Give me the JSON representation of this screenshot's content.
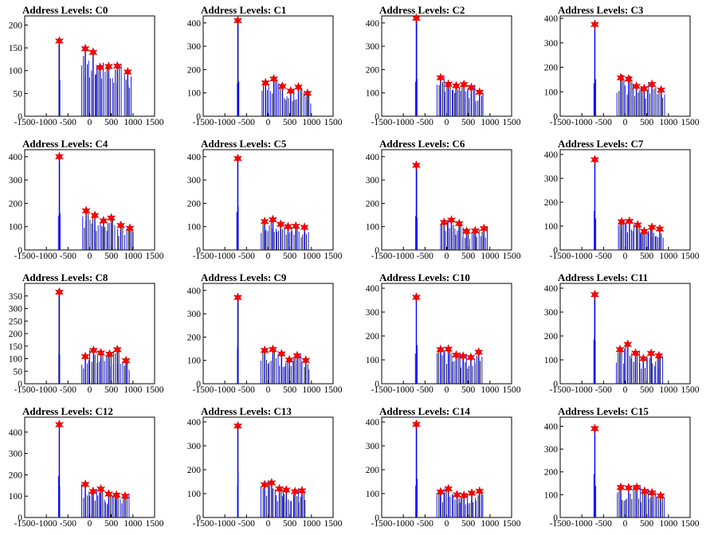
{
  "chart_data": [
    {
      "title": "Address Levels: C0",
      "type": "bar",
      "xlim": [
        -1500,
        1500
      ],
      "ylim": [
        0,
        220
      ],
      "xticks": [
        "-1500",
        "-1000",
        "-500",
        "0",
        "500",
        "1000",
        "1500"
      ],
      "yticks": [
        "0",
        "50",
        "100",
        "150",
        "200"
      ],
      "peaks": [
        {
          "x": -700,
          "y": 165
        },
        {
          "x": -100,
          "y": 148
        },
        {
          "x": 80,
          "y": 140
        },
        {
          "x": 240,
          "y": 107
        },
        {
          "x": 440,
          "y": 109
        },
        {
          "x": 640,
          "y": 110
        },
        {
          "x": 880,
          "y": 97
        }
      ]
    },
    {
      "title": "Address Levels: C1",
      "type": "bar",
      "xlim": [
        -1500,
        1500
      ],
      "ylim": [
        0,
        430
      ],
      "xticks": [
        "-1500",
        "-1000",
        "-500",
        "0",
        "500",
        "1000",
        "1500"
      ],
      "yticks": [
        "0",
        "100",
        "200",
        "300",
        "400"
      ],
      "peaks": [
        {
          "x": -700,
          "y": 410
        },
        {
          "x": -60,
          "y": 143
        },
        {
          "x": 130,
          "y": 160
        },
        {
          "x": 330,
          "y": 128
        },
        {
          "x": 520,
          "y": 108
        },
        {
          "x": 700,
          "y": 125
        },
        {
          "x": 910,
          "y": 98
        }
      ]
    },
    {
      "title": "Address Levels: C2",
      "type": "bar",
      "xlim": [
        -1500,
        1500
      ],
      "ylim": [
        0,
        430
      ],
      "xticks": [
        "-1500",
        "-1000",
        "-500",
        "0",
        "500",
        "1000",
        "1500"
      ],
      "yticks": [
        "0",
        "100",
        "200",
        "300",
        "400"
      ],
      "peaks": [
        {
          "x": -700,
          "y": 420
        },
        {
          "x": -140,
          "y": 165
        },
        {
          "x": 40,
          "y": 137
        },
        {
          "x": 220,
          "y": 130
        },
        {
          "x": 400,
          "y": 136
        },
        {
          "x": 570,
          "y": 123
        },
        {
          "x": 760,
          "y": 103
        }
      ]
    },
    {
      "title": "Address Levels: C3",
      "type": "bar",
      "xlim": [
        -1500,
        1500
      ],
      "ylim": [
        0,
        410
      ],
      "xticks": [
        "-1500",
        "-1000",
        "-500",
        "0",
        "500",
        "1000",
        "1500"
      ],
      "yticks": [
        "0",
        "100",
        "200",
        "300",
        "400"
      ],
      "peaks": [
        {
          "x": -700,
          "y": 375
        },
        {
          "x": -100,
          "y": 157
        },
        {
          "x": 80,
          "y": 152
        },
        {
          "x": 260,
          "y": 122
        },
        {
          "x": 440,
          "y": 113
        },
        {
          "x": 620,
          "y": 130
        },
        {
          "x": 830,
          "y": 107
        }
      ]
    },
    {
      "title": "Address Levels: C4",
      "type": "bar",
      "xlim": [
        -1500,
        1500
      ],
      "ylim": [
        0,
        430
      ],
      "xticks": [
        "-1500",
        "-1000",
        "-500",
        "0",
        "500",
        "1000",
        "1500"
      ],
      "yticks": [
        "0",
        "100",
        "200",
        "300",
        "400"
      ],
      "peaks": [
        {
          "x": -700,
          "y": 400
        },
        {
          "x": -80,
          "y": 168
        },
        {
          "x": 120,
          "y": 148
        },
        {
          "x": 320,
          "y": 125
        },
        {
          "x": 500,
          "y": 137
        },
        {
          "x": 720,
          "y": 105
        },
        {
          "x": 930,
          "y": 93
        }
      ]
    },
    {
      "title": "Address Levels: C5",
      "type": "bar",
      "xlim": [
        -1500,
        1500
      ],
      "ylim": [
        0,
        430
      ],
      "xticks": [
        "-1500",
        "-1000",
        "-500",
        "0",
        "500",
        "1000",
        "1500"
      ],
      "yticks": [
        "0",
        "100",
        "200",
        "300",
        "400"
      ],
      "peaks": [
        {
          "x": -700,
          "y": 392
        },
        {
          "x": -80,
          "y": 122
        },
        {
          "x": 110,
          "y": 130
        },
        {
          "x": 290,
          "y": 110
        },
        {
          "x": 460,
          "y": 100
        },
        {
          "x": 640,
          "y": 102
        },
        {
          "x": 840,
          "y": 97
        }
      ]
    },
    {
      "title": "Address Levels: C6",
      "type": "bar",
      "xlim": [
        -1500,
        1500
      ],
      "ylim": [
        0,
        430
      ],
      "xticks": [
        "-1500",
        "-1000",
        "-500",
        "0",
        "500",
        "1000",
        "1500"
      ],
      "yticks": [
        "0",
        "100",
        "200",
        "300",
        "400"
      ],
      "peaks": [
        {
          "x": -700,
          "y": 363
        },
        {
          "x": -60,
          "y": 118
        },
        {
          "x": 110,
          "y": 128
        },
        {
          "x": 290,
          "y": 113
        },
        {
          "x": 460,
          "y": 80
        },
        {
          "x": 660,
          "y": 82
        },
        {
          "x": 860,
          "y": 92
        }
      ]
    },
    {
      "title": "Address Levels: C7",
      "type": "bar",
      "xlim": [
        -1500,
        1500
      ],
      "ylim": [
        0,
        420
      ],
      "xticks": [
        "-1500",
        "-1000",
        "-500",
        "0",
        "500",
        "1000",
        "1500"
      ],
      "yticks": [
        "0",
        "100",
        "200",
        "300",
        "400"
      ],
      "peaks": [
        {
          "x": -700,
          "y": 378
        },
        {
          "x": -80,
          "y": 118
        },
        {
          "x": 100,
          "y": 120
        },
        {
          "x": 290,
          "y": 105
        },
        {
          "x": 440,
          "y": 78
        },
        {
          "x": 620,
          "y": 95
        },
        {
          "x": 800,
          "y": 88
        }
      ]
    },
    {
      "title": "Address Levels: C8",
      "type": "bar",
      "xlim": [
        -1500,
        1500
      ],
      "ylim": [
        0,
        400
      ],
      "xticks": [
        "-1500",
        "-1000",
        "-500",
        "0",
        "500",
        "1000",
        "1500"
      ],
      "yticks": [
        "0",
        "50",
        "100",
        "150",
        "200",
        "250",
        "300",
        "350"
      ],
      "peaks": [
        {
          "x": -700,
          "y": 365
        },
        {
          "x": -100,
          "y": 108
        },
        {
          "x": 90,
          "y": 133
        },
        {
          "x": 260,
          "y": 123
        },
        {
          "x": 460,
          "y": 118
        },
        {
          "x": 640,
          "y": 136
        },
        {
          "x": 840,
          "y": 92
        }
      ]
    },
    {
      "title": "Address Levels: C9",
      "type": "bar",
      "xlim": [
        -1500,
        1500
      ],
      "ylim": [
        0,
        430
      ],
      "xticks": [
        "-1500",
        "-1000",
        "-500",
        "0",
        "500",
        "1000",
        "1500"
      ],
      "yticks": [
        "0",
        "100",
        "200",
        "300",
        "400"
      ],
      "peaks": [
        {
          "x": -700,
          "y": 370
        },
        {
          "x": -80,
          "y": 143
        },
        {
          "x": 110,
          "y": 147
        },
        {
          "x": 310,
          "y": 128
        },
        {
          "x": 490,
          "y": 102
        },
        {
          "x": 670,
          "y": 120
        },
        {
          "x": 870,
          "y": 100
        }
      ]
    },
    {
      "title": "Address Levels: C10",
      "type": "bar",
      "xlim": [
        -1500,
        1500
      ],
      "ylim": [
        0,
        420
      ],
      "xticks": [
        "-1500",
        "-1000",
        "-500",
        "0",
        "500",
        "1000",
        "1500"
      ],
      "yticks": [
        "0",
        "100",
        "200",
        "300",
        "400"
      ],
      "peaks": [
        {
          "x": -700,
          "y": 362
        },
        {
          "x": -140,
          "y": 143
        },
        {
          "x": 40,
          "y": 145
        },
        {
          "x": 220,
          "y": 120
        },
        {
          "x": 380,
          "y": 115
        },
        {
          "x": 560,
          "y": 110
        },
        {
          "x": 740,
          "y": 132
        }
      ]
    },
    {
      "title": "Address Levels: C11",
      "type": "bar",
      "xlim": [
        -1500,
        1500
      ],
      "ylim": [
        0,
        420
      ],
      "xticks": [
        "-1500",
        "-1000",
        "-500",
        "0",
        "500",
        "1000",
        "1500"
      ],
      "yticks": [
        "0",
        "100",
        "200",
        "300",
        "400"
      ],
      "peaks": [
        {
          "x": -700,
          "y": 373
        },
        {
          "x": -120,
          "y": 143
        },
        {
          "x": 60,
          "y": 165
        },
        {
          "x": 240,
          "y": 128
        },
        {
          "x": 420,
          "y": 105
        },
        {
          "x": 600,
          "y": 127
        },
        {
          "x": 780,
          "y": 117
        }
      ]
    },
    {
      "title": "Address Levels: C12",
      "type": "bar",
      "xlim": [
        -1500,
        1500
      ],
      "ylim": [
        0,
        470
      ],
      "xticks": [
        "-1500",
        "-1000",
        "-500",
        "0",
        "500",
        "1000",
        "1500"
      ],
      "yticks": [
        "0",
        "100",
        "200",
        "300",
        "400"
      ],
      "peaks": [
        {
          "x": -700,
          "y": 435
        },
        {
          "x": -100,
          "y": 155
        },
        {
          "x": 80,
          "y": 122
        },
        {
          "x": 260,
          "y": 133
        },
        {
          "x": 440,
          "y": 110
        },
        {
          "x": 620,
          "y": 105
        },
        {
          "x": 820,
          "y": 100
        }
      ]
    },
    {
      "title": "Address Levels: C13",
      "type": "bar",
      "xlim": [
        -1500,
        1500
      ],
      "ylim": [
        0,
        420
      ],
      "xticks": [
        "-1500",
        "-1000",
        "-500",
        "0",
        "500",
        "1000",
        "1500"
      ],
      "yticks": [
        "0",
        "100",
        "200",
        "300",
        "400"
      ],
      "peaks": [
        {
          "x": -700,
          "y": 383
        },
        {
          "x": -80,
          "y": 137
        },
        {
          "x": 80,
          "y": 145
        },
        {
          "x": 260,
          "y": 120
        },
        {
          "x": 420,
          "y": 115
        },
        {
          "x": 620,
          "y": 108
        },
        {
          "x": 780,
          "y": 112
        }
      ]
    },
    {
      "title": "Address Levels: C14",
      "type": "bar",
      "xlim": [
        -1500,
        1500
      ],
      "ylim": [
        0,
        420
      ],
      "xticks": [
        "-1500",
        "-1000",
        "-500",
        "0",
        "500",
        "1000",
        "1500"
      ],
      "yticks": [
        "0",
        "100",
        "200",
        "300",
        "400"
      ],
      "peaks": [
        {
          "x": -700,
          "y": 390
        },
        {
          "x": -140,
          "y": 107
        },
        {
          "x": 40,
          "y": 120
        },
        {
          "x": 240,
          "y": 95
        },
        {
          "x": 400,
          "y": 92
        },
        {
          "x": 580,
          "y": 102
        },
        {
          "x": 760,
          "y": 110
        }
      ]
    },
    {
      "title": "Address Levels: C15",
      "type": "bar",
      "xlim": [
        -1500,
        1500
      ],
      "ylim": [
        0,
        440
      ],
      "xticks": [
        "-1500",
        "-1000",
        "-500",
        "0",
        "500",
        "1000",
        "1500"
      ],
      "yticks": [
        "0",
        "100",
        "200",
        "300",
        "400"
      ],
      "peaks": [
        {
          "x": -700,
          "y": 390
        },
        {
          "x": -100,
          "y": 132
        },
        {
          "x": 80,
          "y": 130
        },
        {
          "x": 270,
          "y": 132
        },
        {
          "x": 450,
          "y": 115
        },
        {
          "x": 620,
          "y": 108
        },
        {
          "x": 820,
          "y": 95
        }
      ]
    }
  ]
}
